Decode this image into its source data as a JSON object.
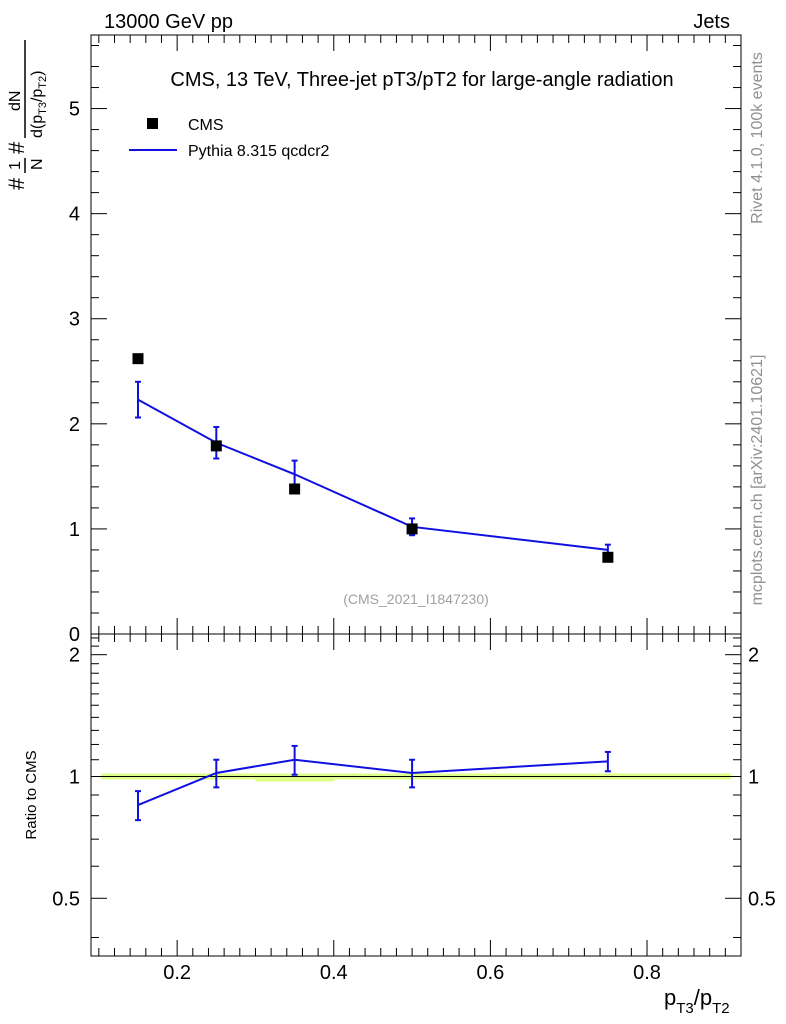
{
  "header": {
    "energy_label": "13000 GeV pp",
    "category_label": "Jets"
  },
  "side_labels": {
    "rivet_info": "Rivet 4.1.0,  100k events",
    "source_info": "mcplots.cern.ch [arXiv:2401.10621]"
  },
  "chart_data": [
    {
      "type": "scatter",
      "panel": "main",
      "title": "CMS, 13 TeV, Three-jet pT3/pT2 for large-angle radiation",
      "watermark": "(CMS_2021_I1847230)",
      "ylabel": "#1/N #dN/d(p_T3/p_T2)",
      "xlim": [
        0.09,
        0.92
      ],
      "ylim": [
        0,
        5.7
      ],
      "y_ticks": [
        0,
        1,
        2,
        3,
        4,
        5
      ],
      "legend": {
        "placement": "top-left",
        "entries": [
          "CMS",
          "Pythia 8.315 qcdcr2"
        ]
      },
      "x": [
        0.15,
        0.25,
        0.35,
        0.5,
        0.75
      ],
      "series": [
        {
          "name": "CMS",
          "style": "markers",
          "color": "#000000",
          "values": [
            2.62,
            1.79,
            1.38,
            1.0,
            0.73
          ]
        },
        {
          "name": "Pythia 8.315 qcdcr2",
          "style": "line",
          "color": "#1010e0",
          "values": [
            2.23,
            1.82,
            1.52,
            1.02,
            0.8
          ],
          "errors": [
            0.17,
            0.15,
            0.13,
            0.08,
            0.05
          ]
        }
      ]
    },
    {
      "type": "line",
      "panel": "ratio",
      "ylabel": "Ratio to CMS",
      "xlabel": "p_T3/p_T2",
      "xlim": [
        0.09,
        0.92
      ],
      "ylim": [
        0.36,
        2.25
      ],
      "y_ticks": [
        0.5,
        1,
        2
      ],
      "x_ticks": [
        0.2,
        0.4,
        0.6,
        0.8
      ],
      "reference_band": {
        "color": "#ddff88",
        "center": 1.0
      },
      "x": [
        0.15,
        0.25,
        0.35,
        0.5,
        0.75
      ],
      "series": [
        {
          "name": "Pythia 8.315 qcdcr2",
          "color": "#1010e0",
          "values": [
            0.85,
            1.02,
            1.1,
            1.02,
            1.09
          ],
          "errors": [
            0.07,
            0.08,
            0.09,
            0.08,
            0.06
          ]
        }
      ]
    }
  ]
}
